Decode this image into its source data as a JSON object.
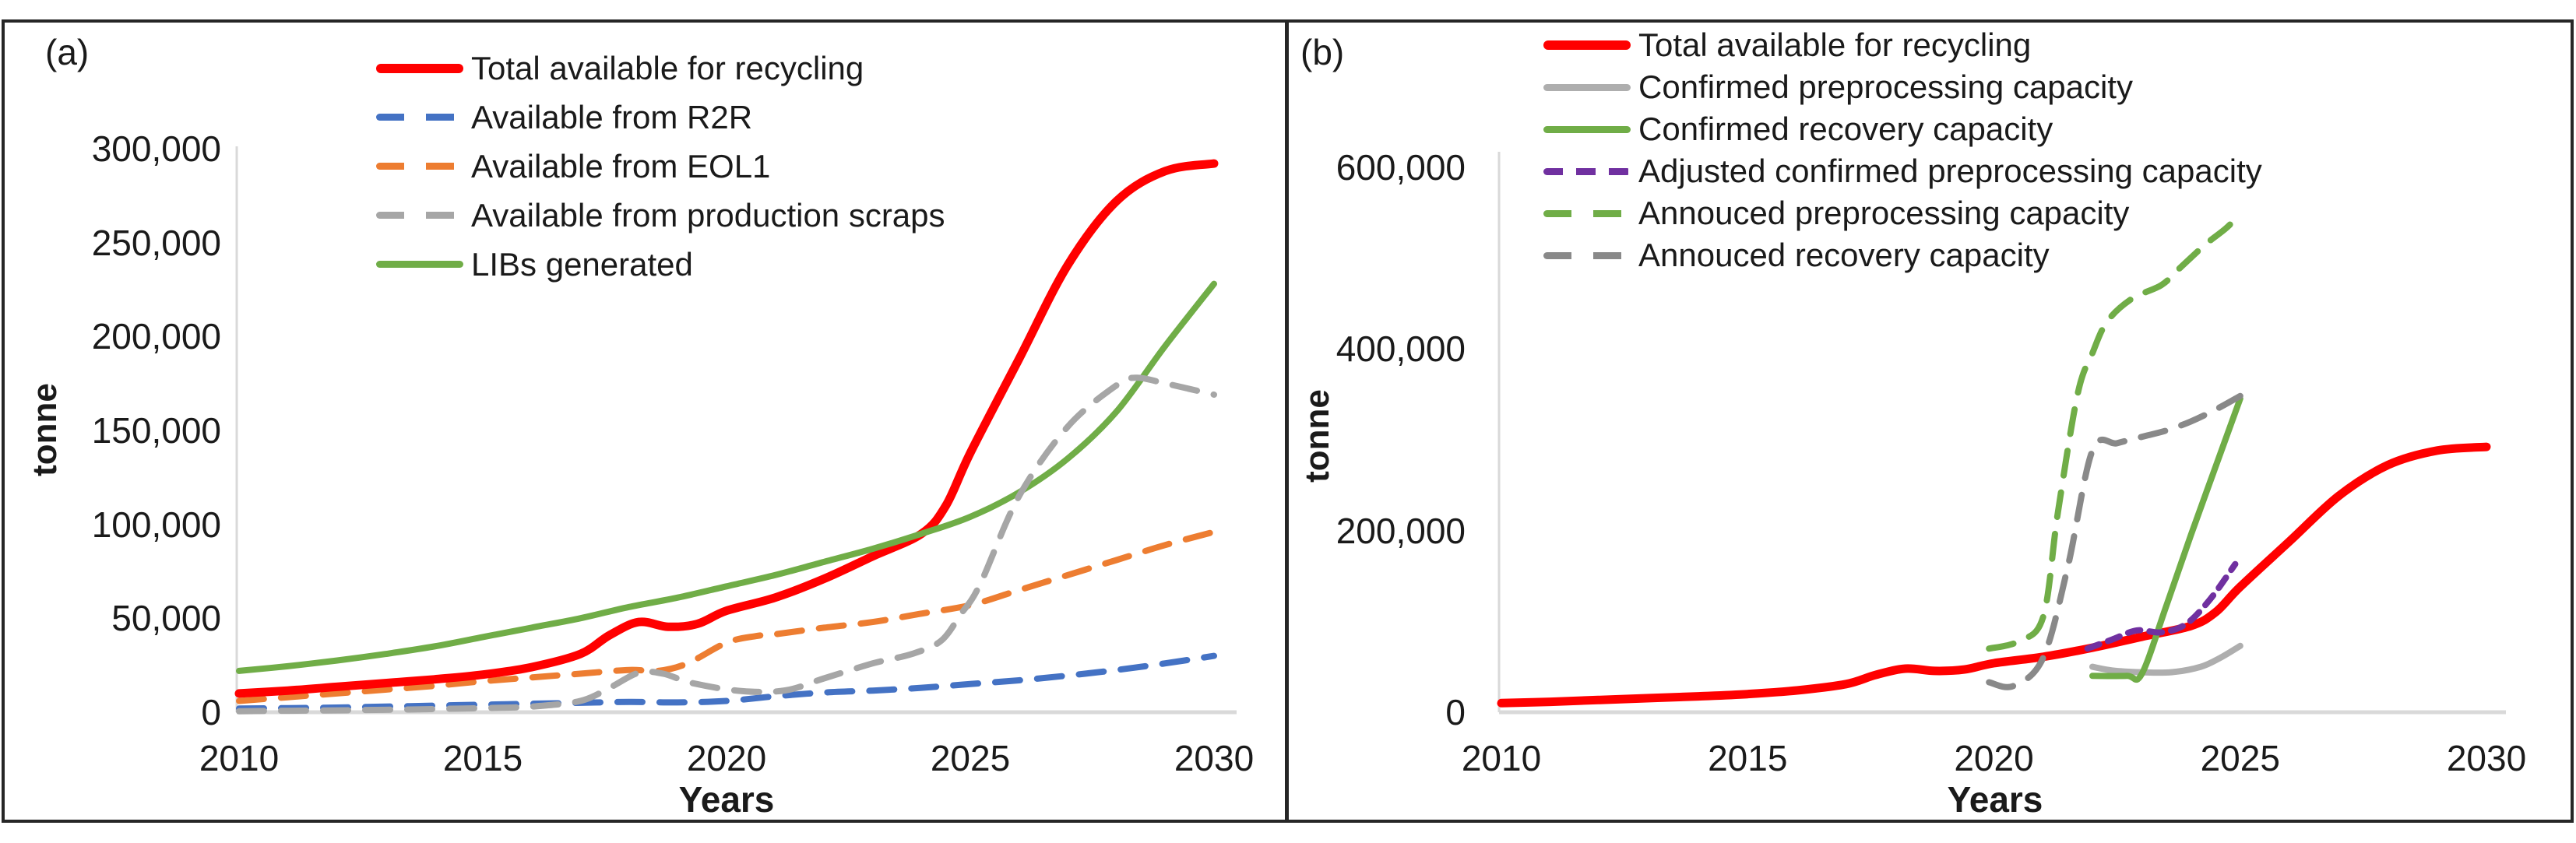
{
  "figure": {
    "background": "#ffffff",
    "border_color": "#262626",
    "axis_line_color": "#d9d9d9",
    "text_color": "#1a1a1a"
  },
  "chart_data": [
    {
      "id": "a",
      "panel_label": "(a)",
      "type": "line",
      "title": "",
      "xlabel": "Years",
      "ylabel": "tonne",
      "xlim": [
        2010,
        2030
      ],
      "ylim": [
        0,
        300000
      ],
      "grid": false,
      "legend_position": "top-left-inside",
      "x_ticks": [
        {
          "v": 2010,
          "label": "2010"
        },
        {
          "v": 2015,
          "label": "2015"
        },
        {
          "v": 2020,
          "label": "2020"
        },
        {
          "v": 2025,
          "label": "2025"
        },
        {
          "v": 2030,
          "label": "2030"
        }
      ],
      "y_ticks": [
        {
          "v": 0,
          "label": "0"
        },
        {
          "v": 50000,
          "label": "50,000"
        },
        {
          "v": 100000,
          "label": "100,000"
        },
        {
          "v": 150000,
          "label": "150,000"
        },
        {
          "v": 200000,
          "label": "200,000"
        },
        {
          "v": 250000,
          "label": "250,000"
        },
        {
          "v": 300000,
          "label": "300,000"
        }
      ],
      "series": [
        {
          "name": "Total available for recycling",
          "color": "#ff0000",
          "style": "solid",
          "width": 11,
          "z": 3,
          "points": [
            [
              2010,
              10000
            ],
            [
              2011,
              11500
            ],
            [
              2012,
              13500
            ],
            [
              2013,
              15500
            ],
            [
              2014,
              17500
            ],
            [
              2015,
              20000
            ],
            [
              2016,
              24000
            ],
            [
              2017,
              31000
            ],
            [
              2017.6,
              41000
            ],
            [
              2018.2,
              48000
            ],
            [
              2018.8,
              45500
            ],
            [
              2019.4,
              47000
            ],
            [
              2020,
              54000
            ],
            [
              2021,
              61000
            ],
            [
              2022,
              71000
            ],
            [
              2023,
              83000
            ],
            [
              2024,
              95000
            ],
            [
              2024.5,
              110000
            ],
            [
              2025,
              138000
            ],
            [
              2026,
              188000
            ],
            [
              2027,
              238000
            ],
            [
              2028,
              272000
            ],
            [
              2029,
              288000
            ],
            [
              2030,
              292000
            ]
          ]
        },
        {
          "name": "Available from R2R",
          "color": "#4472c4",
          "style": "dash",
          "width": 8,
          "z": 1,
          "points": [
            [
              2010,
              2000
            ],
            [
              2011,
              2200
            ],
            [
              2012,
              2500
            ],
            [
              2013,
              3000
            ],
            [
              2014,
              3500
            ],
            [
              2015,
              4000
            ],
            [
              2016,
              4500
            ],
            [
              2017,
              5000
            ],
            [
              2018,
              5500
            ],
            [
              2019,
              5200
            ],
            [
              2020,
              6000
            ],
            [
              2021,
              8500
            ],
            [
              2022,
              10500
            ],
            [
              2023,
              11500
            ],
            [
              2024,
              13000
            ],
            [
              2025,
              15000
            ],
            [
              2026,
              17000
            ],
            [
              2027,
              19500
            ],
            [
              2028,
              22500
            ],
            [
              2029,
              26000
            ],
            [
              2030,
              30000
            ]
          ]
        },
        {
          "name": "Available from EOL1",
          "color": "#ed7d31",
          "style": "dash",
          "width": 8,
          "z": 2,
          "points": [
            [
              2010,
              6000
            ],
            [
              2011,
              8000
            ],
            [
              2012,
              10000
            ],
            [
              2013,
              12000
            ],
            [
              2014,
              14000
            ],
            [
              2015,
              16500
            ],
            [
              2016,
              18500
            ],
            [
              2017,
              20500
            ],
            [
              2018,
              22500
            ],
            [
              2018.6,
              22000
            ],
            [
              2019.2,
              26000
            ],
            [
              2020,
              37000
            ],
            [
              2020.6,
              40500
            ],
            [
              2021,
              41500
            ],
            [
              2022,
              45000
            ],
            [
              2023,
              48000
            ],
            [
              2024,
              52500
            ],
            [
              2025,
              57000
            ],
            [
              2026,
              65000
            ],
            [
              2027,
              73000
            ],
            [
              2028,
              81000
            ],
            [
              2029,
              89000
            ],
            [
              2030,
              96000
            ]
          ]
        },
        {
          "name": "Available from production scraps",
          "color": "#a6a6a6",
          "style": "dash",
          "width": 8,
          "z": 5,
          "points": [
            [
              2010,
              500
            ],
            [
              2011,
              800
            ],
            [
              2012,
              1000
            ],
            [
              2013,
              1300
            ],
            [
              2014,
              1700
            ],
            [
              2015,
              2200
            ],
            [
              2016,
              3000
            ],
            [
              2017,
              6000
            ],
            [
              2017.6,
              13000
            ],
            [
              2018.2,
              21000
            ],
            [
              2018.7,
              20500
            ],
            [
              2019.3,
              15500
            ],
            [
              2020.3,
              11300
            ],
            [
              2021.2,
              11600
            ],
            [
              2022,
              18000
            ],
            [
              2023,
              26000
            ],
            [
              2023.8,
              31000
            ],
            [
              2024.4,
              38000
            ],
            [
              2024.8,
              52000
            ],
            [
              2025.2,
              68000
            ],
            [
              2026,
              115000
            ],
            [
              2027,
              152000
            ],
            [
              2028,
              174000
            ],
            [
              2028.4,
              178000
            ],
            [
              2029,
              175000
            ],
            [
              2030,
              169000
            ]
          ]
        },
        {
          "name": "LIBs generated",
          "color": "#70ad47",
          "style": "solid",
          "width": 8,
          "z": 4,
          "points": [
            [
              2010,
              22000
            ],
            [
              2011,
              24500
            ],
            [
              2012,
              27500
            ],
            [
              2013,
              31000
            ],
            [
              2014,
              35000
            ],
            [
              2015,
              40000
            ],
            [
              2016,
              45000
            ],
            [
              2017,
              50000
            ],
            [
              2018,
              56000
            ],
            [
              2019,
              61000
            ],
            [
              2020,
              67000
            ],
            [
              2021,
              73000
            ],
            [
              2022,
              80000
            ],
            [
              2023,
              87000
            ],
            [
              2024,
              95000
            ],
            [
              2025,
              104000
            ],
            [
              2026,
              117000
            ],
            [
              2027,
              135000
            ],
            [
              2028,
              160000
            ],
            [
              2029,
              195000
            ],
            [
              2030,
              228000
            ]
          ]
        }
      ]
    },
    {
      "id": "b",
      "panel_label": "(b)",
      "type": "line",
      "title": "",
      "xlabel": "Years",
      "ylabel": "tonne",
      "xlim": [
        2010,
        2030
      ],
      "ylim": [
        0,
        600000
      ],
      "grid": false,
      "legend_position": "top-left-inside",
      "x_ticks": [
        {
          "v": 2010,
          "label": "2010"
        },
        {
          "v": 2015,
          "label": "2015"
        },
        {
          "v": 2020,
          "label": "2020"
        },
        {
          "v": 2025,
          "label": "2025"
        },
        {
          "v": 2030,
          "label": "2030"
        }
      ],
      "y_ticks": [
        {
          "v": 0,
          "label": "0"
        },
        {
          "v": 200000,
          "label": "200,000"
        },
        {
          "v": 400000,
          "label": "400,000"
        },
        {
          "v": 600000,
          "label": "600,000"
        }
      ],
      "series": [
        {
          "name": "Total available for recycling",
          "color": "#ff0000",
          "style": "solid",
          "width": 11,
          "z": 1,
          "points": [
            [
              2010,
              10000
            ],
            [
              2011,
              11500
            ],
            [
              2012,
              13500
            ],
            [
              2013,
              15500
            ],
            [
              2014,
              17500
            ],
            [
              2015,
              20000
            ],
            [
              2016,
              24000
            ],
            [
              2017,
              31000
            ],
            [
              2017.6,
              41000
            ],
            [
              2018.2,
              48000
            ],
            [
              2018.8,
              45500
            ],
            [
              2019.4,
              47000
            ],
            [
              2020,
              54000
            ],
            [
              2021,
              61000
            ],
            [
              2022,
              71000
            ],
            [
              2023,
              83000
            ],
            [
              2024,
              95000
            ],
            [
              2024.5,
              110000
            ],
            [
              2025,
              138000
            ],
            [
              2026,
              188000
            ],
            [
              2027,
              238000
            ],
            [
              2028,
              272000
            ],
            [
              2029,
              288000
            ],
            [
              2030,
              292000
            ]
          ]
        },
        {
          "name": "Confirmed preprocessing capacity",
          "color": "#aeaeae",
          "style": "solid",
          "width": 8,
          "z": 2,
          "points": [
            [
              2022,
              50000
            ],
            [
              2022.4,
              46000
            ],
            [
              2023,
              44000
            ],
            [
              2023.6,
              44000
            ],
            [
              2024.2,
              50000
            ],
            [
              2024.6,
              60000
            ],
            [
              2025,
              73000
            ]
          ]
        },
        {
          "name": "Confirmed recovery capacity",
          "color": "#70ad47",
          "style": "solid",
          "width": 8,
          "z": 3,
          "points": [
            [
              2022,
              40000
            ],
            [
              2022.7,
              40000
            ],
            [
              2023,
              42000
            ],
            [
              2023.5,
              117000
            ],
            [
              2024,
              195000
            ],
            [
              2024.5,
              270000
            ],
            [
              2025,
              345000
            ]
          ]
        },
        {
          "name": "Adjusted confirmed preprocessing capacity",
          "color": "#7030a0",
          "style": "dash_short",
          "width": 8,
          "z": 4,
          "points": [
            [
              2021.9,
              70000
            ],
            [
              2022.4,
              80000
            ],
            [
              2022.9,
              90000
            ],
            [
              2023.4,
              88000
            ],
            [
              2023.9,
              97000
            ],
            [
              2024.4,
              125000
            ],
            [
              2024.9,
              163000
            ]
          ]
        },
        {
          "name": "Annouced preprocessing capacity",
          "color": "#70ad47",
          "style": "dash",
          "width": 8,
          "z": 5,
          "points": [
            [
              2019.9,
              70000
            ],
            [
              2020.5,
              78000
            ],
            [
              2021,
              105000
            ],
            [
              2021.3,
              220000
            ],
            [
              2021.7,
              350000
            ],
            [
              2022,
              395000
            ],
            [
              2022.3,
              430000
            ],
            [
              2022.8,
              455000
            ],
            [
              2023.4,
              470000
            ],
            [
              2023.8,
              490000
            ],
            [
              2024.3,
              515000
            ],
            [
              2024.7,
              532000
            ],
            [
              2025,
              548000
            ]
          ]
        },
        {
          "name": "Annouced recovery capacity",
          "color": "#898989",
          "style": "dash",
          "width": 8,
          "z": 6,
          "points": [
            [
              2019.9,
              33000
            ],
            [
              2020.4,
              29000
            ],
            [
              2021,
              60000
            ],
            [
              2021.5,
              160000
            ],
            [
              2022,
              288000
            ],
            [
              2022.5,
              296000
            ],
            [
              2023,
              303000
            ],
            [
              2023.5,
              310000
            ],
            [
              2024,
              320000
            ],
            [
              2024.5,
              333000
            ],
            [
              2025,
              348000
            ]
          ]
        }
      ]
    }
  ]
}
